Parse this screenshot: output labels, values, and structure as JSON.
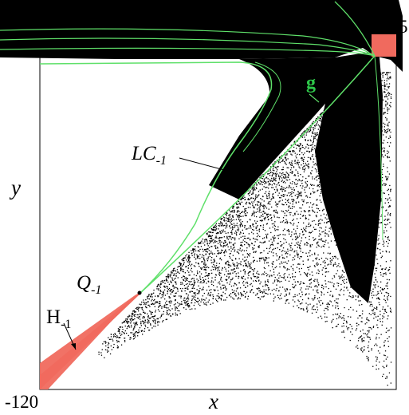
{
  "figure": {
    "tick_min": "-120",
    "tick_max": "5",
    "xlabel": "x",
    "ylabel": "y",
    "labels": {
      "g": "g",
      "lc_main": "LC",
      "lc_sub": "-1",
      "q_main": "Q",
      "q_sub": "-1",
      "h_main": "H",
      "h_sub": "-1"
    }
  },
  "colors": {
    "curve": "#5fe06a",
    "region": "#f06a5e",
    "attractor": "#000000",
    "axes": "#000000"
  }
}
